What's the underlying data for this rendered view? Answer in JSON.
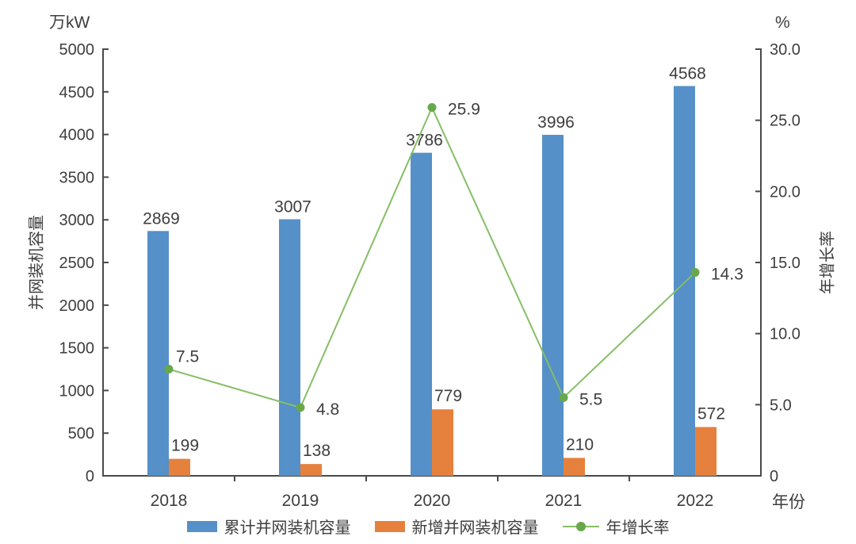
{
  "chart_data": {
    "type": "bar+line",
    "categories": [
      "2018",
      "2019",
      "2020",
      "2021",
      "2022"
    ],
    "series": [
      {
        "name": "累计并网装机容量",
        "type": "bar",
        "axis": "left",
        "color": "#5590C8",
        "values": [
          2869,
          3007,
          3786,
          3996,
          4568
        ],
        "labels": [
          "2869",
          "3007",
          "3786",
          "3996",
          "4568"
        ]
      },
      {
        "name": "新增并网装机容量",
        "type": "bar",
        "axis": "left",
        "color": "#E5813D",
        "values": [
          199,
          138,
          779,
          210,
          572
        ],
        "labels": [
          "199",
          "138",
          "779",
          "210",
          "572"
        ]
      },
      {
        "name": "年增长率",
        "type": "line",
        "axis": "right",
        "color": "#68A84A",
        "line_color": "#86BE67",
        "values": [
          7.5,
          4.8,
          25.9,
          5.5,
          14.3
        ],
        "labels": [
          "7.5",
          "4.8",
          "25.9",
          "5.5",
          "14.3"
        ]
      }
    ],
    "left_axis": {
      "unit": "万kW",
      "title": "并网装机容量",
      "min": 0,
      "max": 5000,
      "step": 500,
      "tick_labels": [
        "0",
        "500",
        "1000",
        "1500",
        "2000",
        "2500",
        "3000",
        "3500",
        "4000",
        "4500",
        "5000"
      ]
    },
    "right_axis": {
      "unit": "%",
      "title": "年增长率",
      "min": 0,
      "max": 30,
      "step": 5,
      "tick_labels": [
        "0",
        "5.0",
        "10.0",
        "15.0",
        "20.0",
        "25.0",
        "30.0"
      ]
    },
    "x_axis": {
      "title": "年份"
    },
    "legend_position": "bottom",
    "grid": false,
    "colors": {
      "axis": "#4a4a4a",
      "text": "#3e3e3e",
      "background": "#ffffff"
    }
  }
}
